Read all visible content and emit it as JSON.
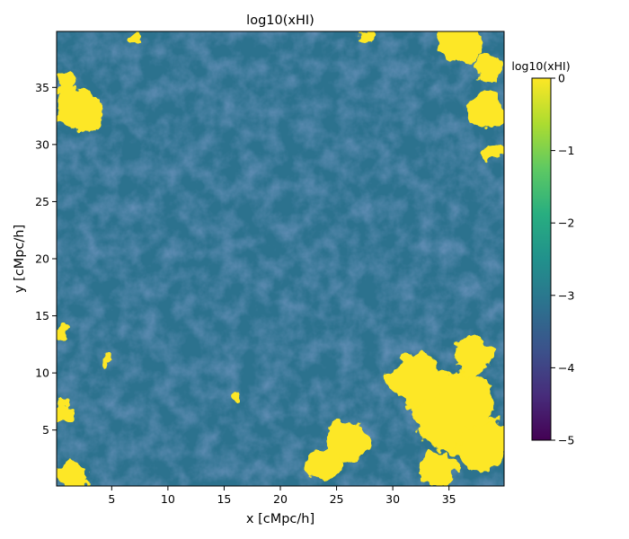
{
  "chart_data": {
    "type": "heatmap",
    "title": "log10(xHI)",
    "xlabel": "x [cMpc/h]",
    "ylabel": "y [cMpc/h]",
    "xlim": [
      0.1,
      39.9
    ],
    "ylim": [
      0.1,
      39.9
    ],
    "x_ticks": [
      5,
      10,
      15,
      20,
      25,
      30,
      35
    ],
    "y_ticks": [
      5,
      10,
      15,
      20,
      25,
      30,
      35
    ],
    "colormap": "viridis",
    "colorbar": {
      "label": "log10(xHI)",
      "range": [
        -5,
        0
      ],
      "ticks": [
        0,
        -1,
        -2,
        -3,
        -4,
        -5
      ],
      "tick_labels": [
        "0",
        "−1",
        "−2",
        "−3",
        "−4",
        "−5"
      ]
    },
    "field": {
      "background_value": -3.3,
      "saturated_regions": [
        {
          "x": 35.5,
          "y": 6.5,
          "r": 3.6,
          "value": 0
        },
        {
          "x": 32.0,
          "y": 9.5,
          "r": 2.4,
          "value": 0
        },
        {
          "x": 38.0,
          "y": 3.5,
          "r": 2.2,
          "value": 0
        },
        {
          "x": 37.0,
          "y": 11.5,
          "r": 1.8,
          "value": 0
        },
        {
          "x": 34.0,
          "y": 1.5,
          "r": 1.6,
          "value": 0
        },
        {
          "x": 26.0,
          "y": 4.0,
          "r": 1.9,
          "value": 0
        },
        {
          "x": 24.0,
          "y": 2.0,
          "r": 1.5,
          "value": 0
        },
        {
          "x": 2.0,
          "y": 33.0,
          "r": 2.0,
          "value": 0
        },
        {
          "x": 0.8,
          "y": 35.5,
          "r": 1.0,
          "value": 0
        },
        {
          "x": 36.0,
          "y": 39.0,
          "r": 2.0,
          "value": 0
        },
        {
          "x": 38.5,
          "y": 33.0,
          "r": 1.6,
          "value": 0
        },
        {
          "x": 38.5,
          "y": 37.0,
          "r": 1.2,
          "value": 0
        },
        {
          "x": 39.0,
          "y": 29.5,
          "r": 0.9,
          "value": 0
        },
        {
          "x": 1.5,
          "y": 1.0,
          "r": 1.4,
          "value": 0
        },
        {
          "x": 0.8,
          "y": 6.5,
          "r": 1.0,
          "value": 0
        },
        {
          "x": 16.0,
          "y": 8.0,
          "r": 0.6,
          "value": 0
        },
        {
          "x": 0.5,
          "y": 13.5,
          "r": 0.5,
          "value": 0
        },
        {
          "x": 4.5,
          "y": 11.0,
          "r": 0.5,
          "value": 0
        },
        {
          "x": 7.0,
          "y": 39.5,
          "r": 0.5,
          "value": 0
        },
        {
          "x": 27.5,
          "y": 39.5,
          "r": 0.6,
          "value": 0
        }
      ]
    }
  }
}
